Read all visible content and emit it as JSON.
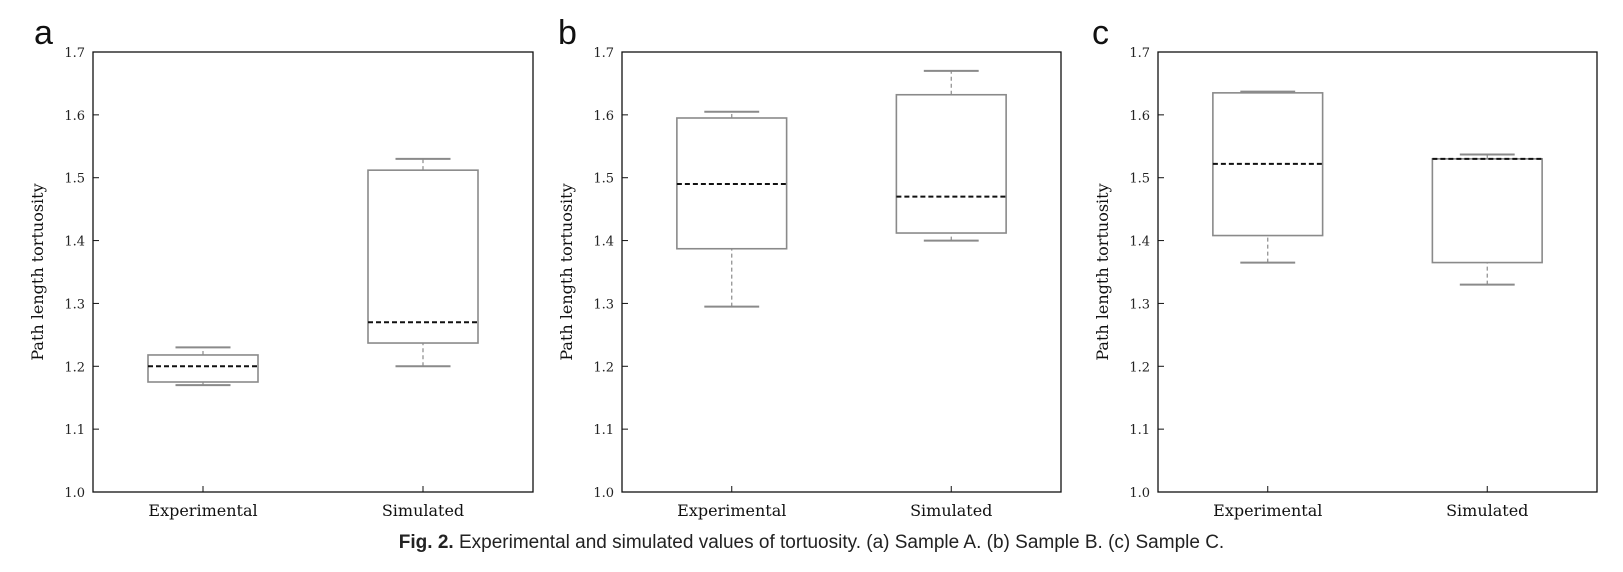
{
  "caption": {
    "label": "Fig. 2.",
    "text": "Experimental and simulated values of tortuosity. (a) Sample A. (b) Sample B. (c) Sample C."
  },
  "chart_data": [
    {
      "panel": "a",
      "type": "box",
      "ylabel": "Path length tortuosity",
      "ylim": [
        1.0,
        1.7
      ],
      "yticks": [
        "1.0",
        "1.1",
        "1.2",
        "1.3",
        "1.4",
        "1.5",
        "1.6",
        "1.7"
      ],
      "categories": [
        "Experimental",
        "Simulated"
      ],
      "boxes": [
        {
          "min": 1.17,
          "q1": 1.175,
          "median": 1.2,
          "q3": 1.218,
          "max": 1.23
        },
        {
          "min": 1.2,
          "q1": 1.237,
          "median": 1.27,
          "q3": 1.512,
          "max": 1.53
        }
      ]
    },
    {
      "panel": "b",
      "type": "box",
      "ylabel": "Path length tortuosity",
      "ylim": [
        1.0,
        1.7
      ],
      "yticks": [
        "1.0",
        "1.1",
        "1.2",
        "1.3",
        "1.4",
        "1.5",
        "1.6",
        "1.7"
      ],
      "categories": [
        "Experimental",
        "Simulated"
      ],
      "boxes": [
        {
          "min": 1.295,
          "q1": 1.387,
          "median": 1.49,
          "q3": 1.595,
          "max": 1.605
        },
        {
          "min": 1.4,
          "q1": 1.412,
          "median": 1.47,
          "q3": 1.632,
          "max": 1.67
        }
      ]
    },
    {
      "panel": "c",
      "type": "box",
      "ylabel": "Path length tortuosity",
      "ylim": [
        1.0,
        1.7
      ],
      "yticks": [
        "1.0",
        "1.1",
        "1.2",
        "1.3",
        "1.4",
        "1.5",
        "1.6",
        "1.7"
      ],
      "categories": [
        "Experimental",
        "Simulated"
      ],
      "boxes": [
        {
          "min": 1.365,
          "q1": 1.408,
          "median": 1.522,
          "q3": 1.635,
          "max": 1.637
        },
        {
          "min": 1.33,
          "q1": 1.365,
          "median": 1.53,
          "q3": 1.53,
          "max": 1.537
        }
      ]
    }
  ]
}
